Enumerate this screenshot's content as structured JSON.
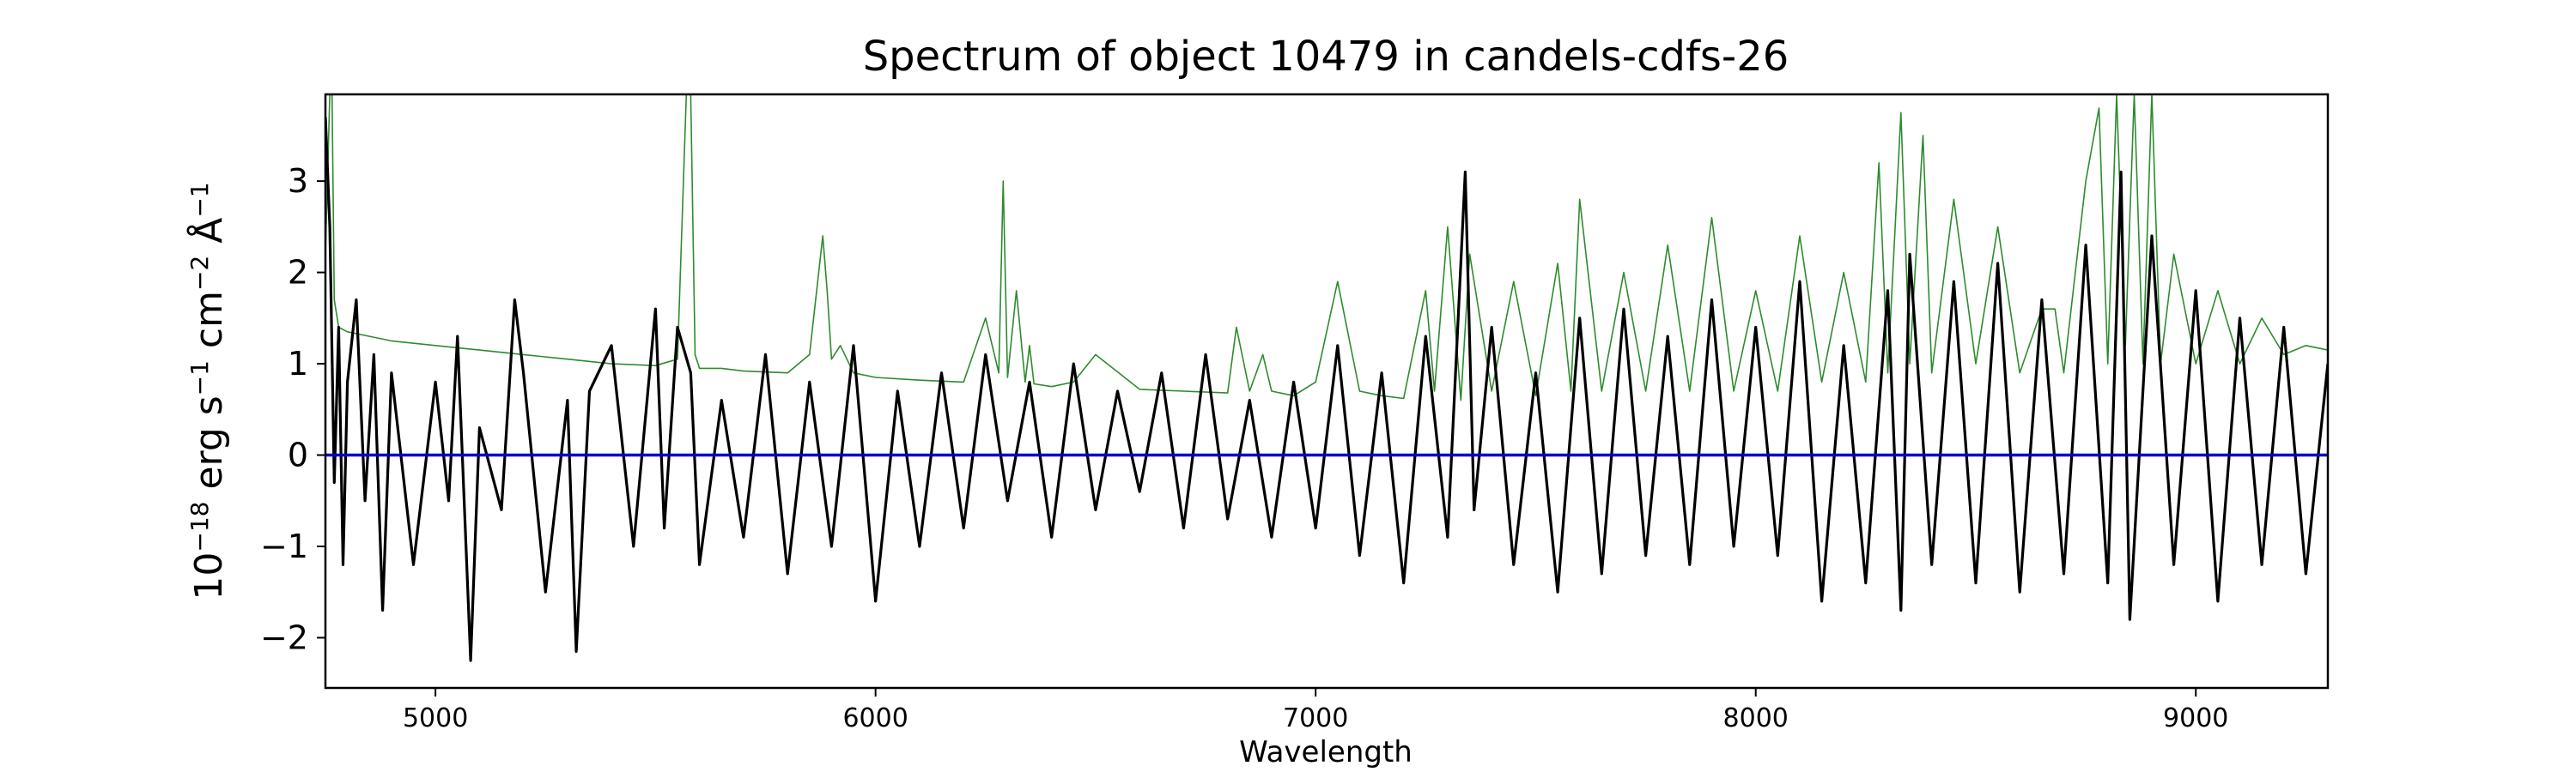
{
  "chart_data": {
    "type": "line",
    "title": "Spectrum of object 10479 in candels-cdfs-26",
    "xlabel": "Wavelength",
    "ylabel": {
      "prefix": "10",
      "exponent": "−18",
      "unit1": " erg s",
      "exp1": "−1",
      "unit2": " cm",
      "exp2": "−2",
      "unit3": " Å",
      "exp3": "−1"
    },
    "xlim": [
      4750,
      9300
    ],
    "ylim": [
      -2.55,
      3.95
    ],
    "xticks": [
      5000,
      6000,
      7000,
      8000,
      9000
    ],
    "xtick_labels": [
      "5000",
      "6000",
      "7000",
      "8000",
      "9000"
    ],
    "yticks": [
      -2,
      -1,
      0,
      1,
      2,
      3
    ],
    "ytick_labels": [
      "−2",
      "−1",
      "0",
      "1",
      "2",
      "3"
    ],
    "grid": false,
    "colors": {
      "flux": "#000000",
      "noise": "#2e8b2e",
      "zero": "#0000cc"
    },
    "series": [
      {
        "role": "flux",
        "x": [
          4750,
          4760,
          4770,
          4780,
          4790,
          4800,
          4820,
          4840,
          4860,
          4880,
          4900,
          4950,
          5000,
          5030,
          5050,
          5080,
          5100,
          5150,
          5180,
          5200,
          5250,
          5300,
          5320,
          5350,
          5400,
          5450,
          5500,
          5520,
          5550,
          5580,
          5600,
          5650,
          5700,
          5750,
          5800,
          5850,
          5900,
          5950,
          6000,
          6050,
          6100,
          6150,
          6200,
          6250,
          6300,
          6350,
          6400,
          6450,
          6500,
          6550,
          6600,
          6650,
          6700,
          6750,
          6800,
          6850,
          6900,
          6950,
          7000,
          7050,
          7100,
          7150,
          7200,
          7250,
          7300,
          7340,
          7360,
          7400,
          7450,
          7500,
          7550,
          7600,
          7650,
          7700,
          7750,
          7800,
          7850,
          7900,
          7950,
          8000,
          8050,
          8100,
          8150,
          8200,
          8250,
          8300,
          8330,
          8350,
          8400,
          8450,
          8500,
          8550,
          8600,
          8650,
          8700,
          8750,
          8800,
          8830,
          8850,
          8900,
          8950,
          9000,
          9050,
          9100,
          9150,
          9200,
          9250,
          9300
        ],
        "y": [
          3.7,
          2.5,
          -0.3,
          1.4,
          -1.2,
          0.8,
          1.7,
          -0.5,
          1.1,
          -1.7,
          0.9,
          -1.2,
          0.8,
          -0.5,
          1.3,
          -2.25,
          0.3,
          -0.6,
          1.7,
          0.9,
          -1.5,
          0.6,
          -2.15,
          0.7,
          1.2,
          -1.0,
          1.6,
          -0.8,
          1.4,
          0.9,
          -1.2,
          0.6,
          -0.9,
          1.1,
          -1.3,
          0.8,
          -1.0,
          1.2,
          -1.6,
          0.7,
          -1.0,
          0.9,
          -0.8,
          1.1,
          -0.5,
          0.8,
          -0.9,
          1.0,
          -0.6,
          0.7,
          -0.4,
          0.9,
          -0.8,
          1.1,
          -0.7,
          0.6,
          -0.9,
          0.8,
          -0.8,
          1.2,
          -1.1,
          0.9,
          -1.4,
          1.3,
          -0.9,
          3.1,
          -0.6,
          1.4,
          -1.2,
          0.9,
          -1.5,
          1.5,
          -1.3,
          1.6,
          -1.1,
          1.3,
          -1.2,
          1.7,
          -1.0,
          1.4,
          -1.1,
          1.9,
          -1.6,
          1.2,
          -1.4,
          1.8,
          -1.7,
          2.2,
          -1.2,
          1.9,
          -1.4,
          2.1,
          -1.5,
          1.7,
          -1.3,
          2.3,
          -1.4,
          3.1,
          -1.8,
          2.4,
          -1.2,
          1.8,
          -1.6,
          1.5,
          -1.2,
          1.4,
          -1.3,
          1.0
        ]
      },
      {
        "role": "noise",
        "x": [
          4750,
          4760,
          4765,
          4770,
          4780,
          4800,
          4850,
          4900,
          5000,
          5100,
          5200,
          5300,
          5400,
          5500,
          5550,
          5570,
          5580,
          5590,
          5600,
          5650,
          5700,
          5800,
          5850,
          5880,
          5890,
          5900,
          5920,
          5950,
          6000,
          6100,
          6200,
          6250,
          6280,
          6290,
          6300,
          6320,
          6340,
          6350,
          6360,
          6400,
          6450,
          6500,
          6600,
          6700,
          6800,
          6820,
          6850,
          6880,
          6900,
          6950,
          7000,
          7050,
          7100,
          7150,
          7200,
          7250,
          7270,
          7300,
          7330,
          7350,
          7400,
          7450,
          7500,
          7550,
          7580,
          7600,
          7650,
          7700,
          7750,
          7800,
          7850,
          7900,
          7950,
          8000,
          8050,
          8100,
          8150,
          8200,
          8250,
          8280,
          8300,
          8330,
          8350,
          8380,
          8400,
          8450,
          8500,
          8550,
          8600,
          8650,
          8680,
          8700,
          8750,
          8780,
          8800,
          8820,
          8840,
          8860,
          8880,
          8900,
          8920,
          8950,
          9000,
          9050,
          9100,
          9150,
          9200,
          9250,
          9300
        ],
        "y": [
          2.2,
          3.95,
          3.95,
          1.7,
          1.4,
          1.35,
          1.3,
          1.25,
          1.2,
          1.15,
          1.1,
          1.05,
          1.0,
          0.98,
          1.05,
          3.95,
          3.95,
          1.1,
          0.95,
          0.95,
          0.92,
          0.9,
          1.1,
          2.4,
          1.8,
          1.05,
          1.2,
          0.9,
          0.85,
          0.82,
          0.8,
          1.5,
          0.9,
          3.0,
          0.85,
          1.8,
          0.8,
          1.2,
          0.78,
          0.75,
          0.8,
          1.1,
          0.72,
          0.7,
          0.68,
          1.4,
          0.7,
          1.1,
          0.7,
          0.65,
          0.8,
          1.9,
          0.7,
          0.65,
          0.62,
          1.8,
          0.7,
          2.5,
          0.6,
          2.2,
          0.7,
          1.9,
          0.65,
          2.1,
          0.7,
          2.8,
          0.7,
          2.0,
          0.7,
          2.3,
          0.7,
          2.6,
          0.7,
          1.8,
          0.7,
          2.4,
          0.8,
          2.0,
          0.8,
          3.2,
          0.9,
          3.75,
          1.0,
          3.5,
          0.9,
          2.8,
          1.0,
          2.5,
          0.9,
          1.6,
          1.6,
          0.9,
          3.0,
          3.8,
          1.0,
          3.95,
          1.2,
          3.95,
          1.0,
          3.95,
          1.0,
          2.2,
          1.0,
          1.8,
          1.0,
          1.5,
          1.1,
          1.2,
          1.15
        ]
      },
      {
        "role": "zero",
        "x": [
          4750,
          9300
        ],
        "y": [
          0,
          0
        ]
      }
    ]
  }
}
